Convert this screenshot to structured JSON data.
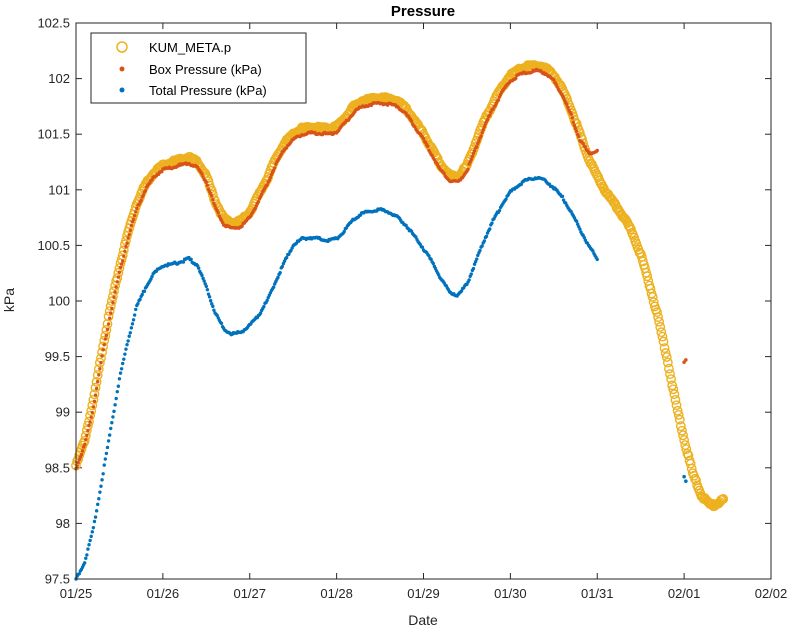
{
  "chart_data": {
    "type": "scatter",
    "title": "Pressure",
    "xlabel": "Date",
    "ylabel": "kPa",
    "x_tick_labels": [
      "01/25",
      "01/26",
      "01/27",
      "01/28",
      "01/29",
      "01/30",
      "01/31",
      "02/01",
      "02/02"
    ],
    "y_tick_labels": [
      "97.5",
      "98",
      "98.5",
      "99",
      "99.5",
      "100",
      "100.5",
      "101",
      "101.5",
      "102",
      "102.5"
    ],
    "xlim_days": [
      0,
      8
    ],
    "x_origin_date": "01/25",
    "ylim": [
      97.5,
      102.5
    ],
    "grid": false,
    "legend_position": "top-left",
    "series": [
      {
        "name": "KUM_META.p",
        "marker": "open-circle",
        "color": "#EDB120",
        "points": [
          [
            0.0,
            98.52
          ],
          [
            0.1,
            98.75
          ],
          [
            0.2,
            99.1
          ],
          [
            0.3,
            99.55
          ],
          [
            0.4,
            99.95
          ],
          [
            0.5,
            100.3
          ],
          [
            0.6,
            100.62
          ],
          [
            0.7,
            100.88
          ],
          [
            0.8,
            101.05
          ],
          [
            0.9,
            101.16
          ],
          [
            1.0,
            101.22
          ],
          [
            1.1,
            101.25
          ],
          [
            1.2,
            101.27
          ],
          [
            1.3,
            101.29
          ],
          [
            1.4,
            101.25
          ],
          [
            1.5,
            101.12
          ],
          [
            1.6,
            100.9
          ],
          [
            1.7,
            100.74
          ],
          [
            1.8,
            100.7
          ],
          [
            1.9,
            100.72
          ],
          [
            2.0,
            100.8
          ],
          [
            2.1,
            100.95
          ],
          [
            2.2,
            101.1
          ],
          [
            2.3,
            101.28
          ],
          [
            2.4,
            101.42
          ],
          [
            2.5,
            101.5
          ],
          [
            2.6,
            101.55
          ],
          [
            2.7,
            101.56
          ],
          [
            2.8,
            101.56
          ],
          [
            2.9,
            101.55
          ],
          [
            3.0,
            101.57
          ],
          [
            3.1,
            101.65
          ],
          [
            3.2,
            101.75
          ],
          [
            3.3,
            101.8
          ],
          [
            3.4,
            101.82
          ],
          [
            3.5,
            101.83
          ],
          [
            3.6,
            101.82
          ],
          [
            3.7,
            101.8
          ],
          [
            3.8,
            101.73
          ],
          [
            3.9,
            101.62
          ],
          [
            4.0,
            101.5
          ],
          [
            4.1,
            101.36
          ],
          [
            4.2,
            101.22
          ],
          [
            4.3,
            101.13
          ],
          [
            4.4,
            101.12
          ],
          [
            4.5,
            101.22
          ],
          [
            4.6,
            101.42
          ],
          [
            4.7,
            101.62
          ],
          [
            4.8,
            101.78
          ],
          [
            4.9,
            101.92
          ],
          [
            5.0,
            102.03
          ],
          [
            5.1,
            102.08
          ],
          [
            5.2,
            102.11
          ],
          [
            5.3,
            102.12
          ],
          [
            5.4,
            102.1
          ],
          [
            5.5,
            102.03
          ],
          [
            5.6,
            101.9
          ],
          [
            5.7,
            101.72
          ],
          [
            5.8,
            101.5
          ],
          [
            5.9,
            101.28
          ],
          [
            6.0,
            101.12
          ],
          [
            6.1,
            100.98
          ],
          [
            6.2,
            100.87
          ],
          [
            6.3,
            100.76
          ],
          [
            6.4,
            100.62
          ],
          [
            6.5,
            100.42
          ],
          [
            6.6,
            100.15
          ],
          [
            6.7,
            99.85
          ],
          [
            6.8,
            99.5
          ],
          [
            6.9,
            99.1
          ],
          [
            7.0,
            98.75
          ],
          [
            7.1,
            98.45
          ],
          [
            7.2,
            98.25
          ],
          [
            7.3,
            98.17
          ],
          [
            7.35,
            98.16
          ],
          [
            7.4,
            98.19
          ],
          [
            7.45,
            98.21
          ]
        ]
      },
      {
        "name": "Box Pressure (kPa)",
        "marker": "dot",
        "color": "#D95319",
        "points": [
          [
            0.0,
            98.5
          ],
          [
            0.1,
            98.7
          ],
          [
            0.2,
            99.05
          ],
          [
            0.3,
            99.5
          ],
          [
            0.4,
            99.9
          ],
          [
            0.5,
            100.25
          ],
          [
            0.6,
            100.57
          ],
          [
            0.7,
            100.83
          ],
          [
            0.8,
            101.0
          ],
          [
            0.9,
            101.12
          ],
          [
            1.0,
            101.18
          ],
          [
            1.1,
            101.2
          ],
          [
            1.2,
            101.22
          ],
          [
            1.3,
            101.24
          ],
          [
            1.4,
            101.2
          ],
          [
            1.5,
            101.07
          ],
          [
            1.6,
            100.85
          ],
          [
            1.7,
            100.69
          ],
          [
            1.8,
            100.65
          ],
          [
            1.9,
            100.67
          ],
          [
            2.0,
            100.75
          ],
          [
            2.1,
            100.9
          ],
          [
            2.2,
            101.05
          ],
          [
            2.3,
            101.23
          ],
          [
            2.4,
            101.37
          ],
          [
            2.5,
            101.45
          ],
          [
            2.6,
            101.5
          ],
          [
            2.7,
            101.51
          ],
          [
            2.8,
            101.51
          ],
          [
            2.9,
            101.5
          ],
          [
            3.0,
            101.52
          ],
          [
            3.1,
            101.6
          ],
          [
            3.2,
            101.7
          ],
          [
            3.3,
            101.75
          ],
          [
            3.4,
            101.77
          ],
          [
            3.5,
            101.78
          ],
          [
            3.6,
            101.77
          ],
          [
            3.7,
            101.75
          ],
          [
            3.8,
            101.68
          ],
          [
            3.9,
            101.57
          ],
          [
            4.0,
            101.45
          ],
          [
            4.1,
            101.31
          ],
          [
            4.2,
            101.17
          ],
          [
            4.3,
            101.08
          ],
          [
            4.4,
            101.07
          ],
          [
            4.5,
            101.17
          ],
          [
            4.6,
            101.37
          ],
          [
            4.7,
            101.57
          ],
          [
            4.8,
            101.73
          ],
          [
            4.9,
            101.87
          ],
          [
            5.0,
            101.98
          ],
          [
            5.1,
            102.03
          ],
          [
            5.2,
            102.06
          ],
          [
            5.3,
            102.07
          ],
          [
            5.4,
            102.05
          ],
          [
            5.5,
            101.98
          ],
          [
            5.6,
            101.85
          ],
          [
            5.7,
            101.67
          ],
          [
            5.8,
            101.45
          ],
          [
            5.9,
            101.33
          ],
          [
            6.0,
            101.35
          ]
        ],
        "isolated_points": [
          [
            7.0,
            99.45
          ],
          [
            7.02,
            99.47
          ]
        ]
      },
      {
        "name": "Total Pressure (kPa)",
        "marker": "dot",
        "color": "#0072BD",
        "points": [
          [
            0.0,
            97.5
          ],
          [
            0.1,
            97.65
          ],
          [
            0.2,
            97.95
          ],
          [
            0.3,
            98.4
          ],
          [
            0.4,
            98.85
          ],
          [
            0.5,
            99.3
          ],
          [
            0.6,
            99.65
          ],
          [
            0.7,
            99.95
          ],
          [
            0.8,
            100.12
          ],
          [
            0.9,
            100.25
          ],
          [
            1.0,
            100.32
          ],
          [
            1.1,
            100.33
          ],
          [
            1.2,
            100.35
          ],
          [
            1.3,
            100.38
          ],
          [
            1.4,
            100.32
          ],
          [
            1.5,
            100.12
          ],
          [
            1.6,
            99.9
          ],
          [
            1.7,
            99.75
          ],
          [
            1.8,
            99.7
          ],
          [
            1.9,
            99.72
          ],
          [
            2.0,
            99.78
          ],
          [
            2.1,
            99.87
          ],
          [
            2.2,
            100.0
          ],
          [
            2.3,
            100.18
          ],
          [
            2.4,
            100.35
          ],
          [
            2.5,
            100.5
          ],
          [
            2.6,
            100.56
          ],
          [
            2.7,
            100.57
          ],
          [
            2.8,
            100.56
          ],
          [
            2.9,
            100.54
          ],
          [
            3.0,
            100.56
          ],
          [
            3.1,
            100.64
          ],
          [
            3.2,
            100.74
          ],
          [
            3.3,
            100.79
          ],
          [
            3.4,
            100.81
          ],
          [
            3.5,
            100.82
          ],
          [
            3.6,
            100.8
          ],
          [
            3.7,
            100.75
          ],
          [
            3.8,
            100.68
          ],
          [
            3.9,
            100.58
          ],
          [
            4.0,
            100.47
          ],
          [
            4.1,
            100.35
          ],
          [
            4.2,
            100.2
          ],
          [
            4.3,
            100.08
          ],
          [
            4.4,
            100.05
          ],
          [
            4.5,
            100.15
          ],
          [
            4.6,
            100.35
          ],
          [
            4.7,
            100.55
          ],
          [
            4.8,
            100.72
          ],
          [
            4.9,
            100.86
          ],
          [
            5.0,
            100.98
          ],
          [
            5.1,
            101.05
          ],
          [
            5.2,
            101.09
          ],
          [
            5.3,
            101.11
          ],
          [
            5.4,
            101.08
          ],
          [
            5.5,
            101.02
          ],
          [
            5.6,
            100.93
          ],
          [
            5.7,
            100.8
          ],
          [
            5.8,
            100.65
          ],
          [
            5.9,
            100.5
          ],
          [
            6.0,
            100.38
          ]
        ],
        "isolated_points": [
          [
            7.0,
            98.42
          ],
          [
            7.02,
            98.38
          ]
        ]
      }
    ]
  }
}
